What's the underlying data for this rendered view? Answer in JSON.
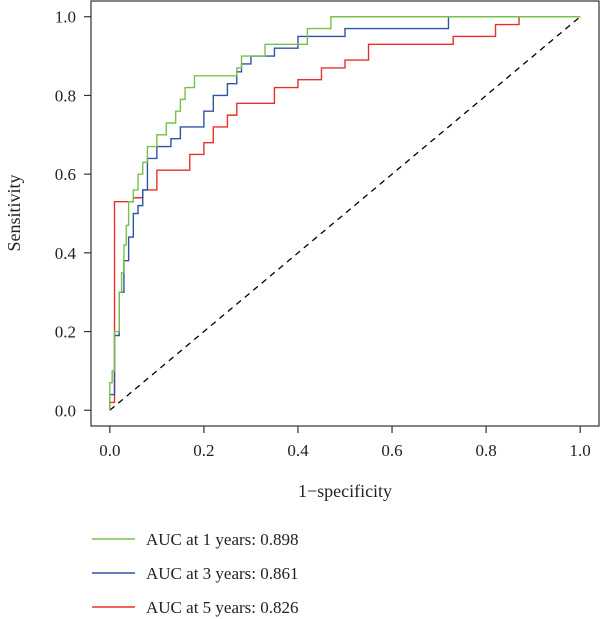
{
  "chart_data": {
    "type": "line",
    "title": "",
    "xlabel": "1−specificity",
    "ylabel": "Sensitivity",
    "xlim": [
      -0.04,
      1.04
    ],
    "ylim": [
      -0.04,
      1.04
    ],
    "xticks": [
      "0.0",
      "0.2",
      "0.4",
      "0.6",
      "0.8",
      "1.0"
    ],
    "yticks": [
      "0.0",
      "0.2",
      "0.4",
      "0.6",
      "0.8",
      "1.0"
    ],
    "grid": false,
    "legend_position": "bottom-left",
    "reference_line": {
      "from": [
        0,
        0
      ],
      "to": [
        1,
        1
      ],
      "style": "dashed",
      "color": "#000000"
    },
    "series": [
      {
        "name": "AUC at 1 years: 0.898",
        "color": "#77c24a",
        "x": [
          0.0,
          0.0,
          0.005,
          0.005,
          0.01,
          0.01,
          0.02,
          0.02,
          0.025,
          0.025,
          0.03,
          0.03,
          0.035,
          0.035,
          0.04,
          0.04,
          0.05,
          0.05,
          0.06,
          0.06,
          0.07,
          0.07,
          0.08,
          0.08,
          0.1,
          0.1,
          0.12,
          0.12,
          0.14,
          0.14,
          0.15,
          0.15,
          0.16,
          0.16,
          0.18,
          0.18,
          0.27,
          0.27,
          0.28,
          0.28,
          0.33,
          0.33,
          0.42,
          0.42,
          0.47,
          0.47,
          1.0
        ],
        "y": [
          0.0,
          0.07,
          0.07,
          0.1,
          0.1,
          0.2,
          0.2,
          0.3,
          0.3,
          0.35,
          0.35,
          0.42,
          0.42,
          0.47,
          0.47,
          0.53,
          0.53,
          0.56,
          0.56,
          0.6,
          0.6,
          0.63,
          0.63,
          0.67,
          0.67,
          0.7,
          0.7,
          0.73,
          0.73,
          0.76,
          0.76,
          0.79,
          0.79,
          0.82,
          0.82,
          0.85,
          0.85,
          0.87,
          0.87,
          0.9,
          0.9,
          0.93,
          0.93,
          0.97,
          0.97,
          1.0,
          1.0
        ]
      },
      {
        "name": "AUC at 3 years: 0.861",
        "color": "#2e54a4",
        "x": [
          0.0,
          0.0,
          0.01,
          0.01,
          0.02,
          0.02,
          0.03,
          0.03,
          0.04,
          0.04,
          0.05,
          0.05,
          0.06,
          0.06,
          0.07,
          0.07,
          0.08,
          0.08,
          0.1,
          0.1,
          0.13,
          0.13,
          0.15,
          0.15,
          0.2,
          0.2,
          0.22,
          0.22,
          0.25,
          0.25,
          0.27,
          0.27,
          0.28,
          0.28,
          0.3,
          0.3,
          0.35,
          0.35,
          0.4,
          0.4,
          0.5,
          0.5,
          0.72,
          0.72,
          1.0
        ],
        "y": [
          0.0,
          0.04,
          0.04,
          0.19,
          0.19,
          0.3,
          0.3,
          0.38,
          0.38,
          0.44,
          0.44,
          0.5,
          0.5,
          0.52,
          0.52,
          0.56,
          0.56,
          0.64,
          0.64,
          0.67,
          0.67,
          0.69,
          0.69,
          0.72,
          0.72,
          0.76,
          0.76,
          0.8,
          0.8,
          0.83,
          0.83,
          0.86,
          0.86,
          0.88,
          0.88,
          0.9,
          0.9,
          0.92,
          0.92,
          0.95,
          0.95,
          0.97,
          0.97,
          1.0,
          1.0
        ]
      },
      {
        "name": "AUC at 5 years: 0.826",
        "color": "#e8302b",
        "x": [
          0.0,
          0.0,
          0.01,
          0.01,
          0.05,
          0.05,
          0.07,
          0.07,
          0.1,
          0.1,
          0.17,
          0.17,
          0.2,
          0.2,
          0.22,
          0.22,
          0.25,
          0.25,
          0.27,
          0.27,
          0.35,
          0.35,
          0.4,
          0.4,
          0.45,
          0.45,
          0.5,
          0.5,
          0.55,
          0.55,
          0.73,
          0.73,
          0.82,
          0.82,
          0.87,
          0.87,
          1.0
        ],
        "y": [
          0.0,
          0.02,
          0.02,
          0.53,
          0.53,
          0.54,
          0.54,
          0.56,
          0.56,
          0.61,
          0.61,
          0.65,
          0.65,
          0.68,
          0.68,
          0.72,
          0.72,
          0.75,
          0.75,
          0.78,
          0.78,
          0.82,
          0.82,
          0.84,
          0.84,
          0.87,
          0.87,
          0.89,
          0.89,
          0.93,
          0.93,
          0.95,
          0.95,
          0.98,
          0.98,
          1.0,
          1.0
        ]
      }
    ]
  }
}
